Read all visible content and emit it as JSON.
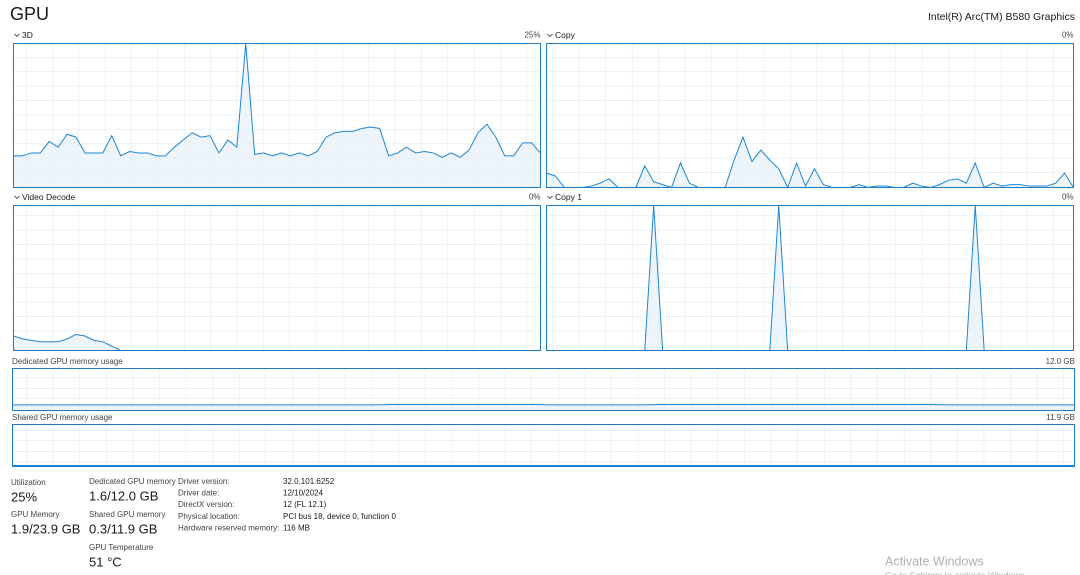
{
  "header": {
    "title": "GPU",
    "device": "Intel(R) Arc(TM) B580 Graphics"
  },
  "graphs": [
    {
      "label": "3D",
      "reading": "25%",
      "ylim": [
        0,
        100
      ],
      "values": [
        22,
        22,
        24,
        24,
        32,
        28,
        37,
        35,
        24,
        24,
        24,
        36,
        22,
        25,
        24,
        24,
        22,
        22,
        28,
        33,
        38,
        35,
        36,
        24,
        33,
        28,
        100,
        23,
        24,
        22,
        24,
        22,
        24,
        22,
        25,
        35,
        38,
        39,
        39,
        41,
        42,
        41,
        22,
        24,
        28,
        24,
        25,
        24,
        21,
        24,
        21,
        26,
        38,
        44,
        35,
        22,
        22,
        31,
        31,
        24
      ]
    },
    {
      "label": "Copy",
      "reading": "0%",
      "ylim": [
        0,
        100
      ],
      "values": [
        10,
        8,
        0,
        0,
        0,
        1,
        3,
        6,
        0,
        0,
        0,
        15,
        4,
        2,
        0,
        17,
        3,
        0,
        0,
        0,
        0,
        19,
        35,
        18,
        26,
        19,
        13,
        0,
        17,
        1,
        13,
        2,
        0,
        0,
        0,
        2,
        0,
        1,
        1,
        0,
        0,
        3,
        1,
        0,
        2,
        5,
        6,
        3,
        17,
        0,
        3,
        1,
        2,
        2,
        1,
        1,
        1,
        3,
        10,
        0
      ]
    },
    {
      "label": "Video Decode",
      "reading": "0%",
      "ylim": [
        0,
        100
      ],
      "values": [
        10,
        8,
        7,
        6,
        6,
        6,
        8,
        11,
        10,
        7,
        6,
        3,
        0,
        0,
        0,
        0,
        0,
        0,
        0,
        0,
        0,
        0,
        0,
        0,
        0,
        0,
        0,
        0,
        0,
        0,
        0,
        0,
        0,
        0,
        0,
        0,
        0,
        0,
        0,
        0,
        0,
        0,
        0,
        0,
        0,
        0,
        0,
        0,
        0,
        0,
        0,
        0,
        0,
        0,
        0,
        0,
        0,
        0,
        0,
        0
      ]
    },
    {
      "label": "Copy 1",
      "reading": "0%",
      "ylim": [
        0,
        100
      ],
      "values": [
        0,
        0,
        0,
        0,
        0,
        0,
        0,
        0,
        0,
        0,
        0,
        0,
        100,
        0,
        0,
        0,
        0,
        0,
        0,
        0,
        0,
        0,
        0,
        0,
        0,
        0,
        100,
        0,
        0,
        0,
        0,
        0,
        0,
        0,
        0,
        0,
        0,
        0,
        0,
        0,
        0,
        0,
        0,
        0,
        0,
        0,
        0,
        0,
        100,
        0,
        0,
        0,
        0,
        0,
        0,
        0,
        0,
        0,
        0,
        0
      ]
    }
  ],
  "memory_graphs": [
    {
      "label": "Dedicated GPU memory usage",
      "reading": "12.0 GB",
      "ylim": [
        0,
        12
      ],
      "values": [
        1.6,
        1.6,
        1.6,
        1.6,
        1.6,
        1.6,
        1.6,
        1.6,
        1.6,
        1.6,
        1.6,
        1.6,
        1.6,
        1.6,
        1.6,
        1.6,
        1.6,
        1.6,
        1.6,
        1.6,
        1.6,
        1.7,
        1.7,
        1.7,
        1.7,
        1.7,
        1.7,
        1.7,
        1.7,
        1.7,
        1.6,
        1.6,
        1.6,
        1.6,
        1.6,
        1.6,
        1.7,
        1.7,
        1.7,
        1.7,
        1.7,
        1.7,
        1.7,
        1.7,
        1.7,
        1.7,
        1.7,
        1.7,
        1.7,
        1.7,
        1.7,
        1.7,
        1.6,
        1.6,
        1.6,
        1.6,
        1.6,
        1.6,
        1.6,
        1.6
      ]
    },
    {
      "label": "Shared GPU memory usage",
      "reading": "11.9 GB",
      "ylim": [
        0,
        11.9
      ],
      "values": [
        0.3,
        0.3,
        0.3,
        0.3,
        0.3,
        0.3,
        0.3,
        0.3,
        0.3,
        0.3,
        0.3,
        0.3,
        0.3,
        0.3,
        0.3,
        0.3,
        0.3,
        0.3,
        0.3,
        0.3,
        0.3,
        0.3,
        0.3,
        0.3,
        0.3,
        0.3,
        0.3,
        0.3,
        0.3,
        0.3,
        0.3,
        0.3,
        0.3,
        0.3,
        0.3,
        0.3,
        0.3,
        0.3,
        0.3,
        0.3,
        0.3,
        0.3,
        0.3,
        0.3,
        0.3,
        0.3,
        0.3,
        0.3,
        0.3,
        0.3,
        0.3,
        0.3,
        0.3,
        0.3,
        0.3,
        0.3,
        0.3,
        0.3,
        0.3,
        0.3
      ]
    }
  ],
  "stats": [
    {
      "label": "Utilization",
      "value": "25%"
    },
    {
      "label": "GPU Memory",
      "value": "1.9/23.9 GB"
    },
    {
      "label": "Dedicated GPU memory",
      "value": "1.6/12.0 GB"
    },
    {
      "label": "Shared GPU memory",
      "value": "0.3/11.9 GB"
    },
    {
      "label": "GPU Temperature",
      "value": "51 °C"
    }
  ],
  "details": [
    {
      "label": "Driver version:",
      "value": "32.0.101.6252"
    },
    {
      "label": "Driver date:",
      "value": "12/10/2024"
    },
    {
      "label": "DirectX version:",
      "value": "12 (FL 12.1)"
    },
    {
      "label": "Physical location:",
      "value": "PCI bus 18, device 0, function 0"
    },
    {
      "label": "Hardware reserved memory:",
      "value": "116 MB"
    }
  ],
  "watermark": {
    "title": "Activate Windows",
    "subtitle": "Go to Settings to activate Windows."
  }
}
